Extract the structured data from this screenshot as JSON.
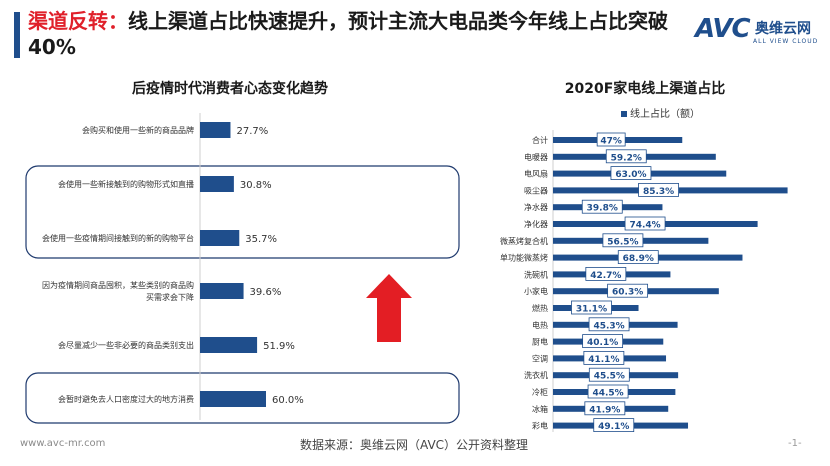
{
  "header": {
    "title_highlight": "渠道反转：",
    "title_rest": "线上渠道占比快速提升，预计主流大电品类今年线上占比突破40%"
  },
  "logo": {
    "mark": "AVC",
    "cn": "奥维云网",
    "en": "ALL VIEW CLOUD"
  },
  "colors": {
    "bar": "#1f4e8c",
    "accent": "#e0202a",
    "frame": "#1f3a6e"
  },
  "footer": {
    "url": "www.avc-mr.com",
    "source": "数据来源：奥维云网（AVC）公开资料整理",
    "page": "-1-"
  },
  "chart_data": [
    {
      "type": "bar",
      "orientation": "horizontal",
      "title": "后疫情时代消费者心态变化趋势",
      "categories": [
        "会购买和使用一些新的商品品牌",
        "会使用一些新接触到的购物形式如直播",
        "会使用一些疫情期间接触到的新的购物平台",
        "因为疫情期间商品囤积，某些类别的商品购买需求会下降",
        "会尽量减少一些非必要的商品类别支出",
        "会暂时避免去人口密度过大的地方消费"
      ],
      "value_labels": [
        "27.7%",
        "30.8%",
        "35.7%",
        "39.6%",
        "51.9%",
        "60.0%"
      ],
      "values": [
        27.7,
        30.8,
        35.7,
        39.6,
        51.9,
        60.0
      ],
      "xlim": [
        0,
        100
      ],
      "grid": false
    },
    {
      "type": "bar",
      "orientation": "horizontal",
      "title": "2020F家电线上渠道占比",
      "legend": "线上占比（额）",
      "legend_position": "top",
      "categories": [
        "合计",
        "电暖器",
        "电风扇",
        "吸尘器",
        "净水器",
        "净化器",
        "微蒸烤复合机",
        "单功能微蒸烤",
        "洗碗机",
        "小家电",
        "燃热",
        "电热",
        "厨电",
        "空调",
        "洗衣机",
        "冷柜",
        "冰箱",
        "彩电"
      ],
      "value_labels": [
        "47%",
        "59.2%",
        "63.0%",
        "85.3%",
        "39.8%",
        "74.4%",
        "56.5%",
        "68.9%",
        "42.7%",
        "60.3%",
        "31.1%",
        "45.3%",
        "40.1%",
        "41.1%",
        "45.5%",
        "44.5%",
        "41.9%",
        "49.1%"
      ],
      "values": [
        47,
        59.2,
        63.0,
        85.3,
        39.8,
        74.4,
        56.5,
        68.9,
        42.7,
        60.3,
        31.1,
        45.3,
        40.1,
        41.1,
        45.5,
        44.5,
        41.9,
        49.1
      ],
      "xlim": [
        0,
        100
      ],
      "grid": false
    }
  ]
}
